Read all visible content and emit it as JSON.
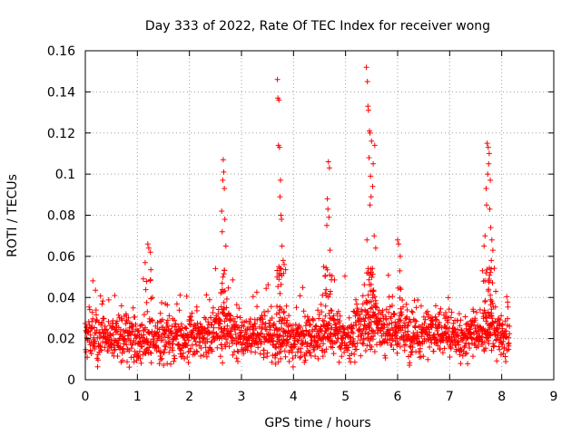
{
  "chart_data": {
    "type": "scatter",
    "title": "Day 333 of 2022, Rate Of TEC Index for receiver wong",
    "xlabel": "GPS time / hours",
    "ylabel": "ROTI / TECUs",
    "xlim": [
      0,
      9
    ],
    "ylim": [
      0,
      0.16
    ],
    "xticks": [
      0,
      1,
      2,
      3,
      4,
      5,
      6,
      7,
      8,
      9
    ],
    "xtick_labels": [
      "0",
      "1",
      "2",
      "3",
      "4",
      "5",
      "6",
      "7",
      "8",
      "9"
    ],
    "yticks": [
      0,
      0.02,
      0.04,
      0.06,
      0.08,
      0.1,
      0.12,
      0.14,
      0.16
    ],
    "ytick_labels": [
      "0",
      "0.02",
      "0.04",
      "0.06",
      "0.08",
      "0.1",
      "0.12",
      "0.14",
      "0.16"
    ],
    "grid": true,
    "marker": "+",
    "color": "#ff0000",
    "series": [
      {
        "name": "ROTI",
        "x_range": [
          0,
          8.15
        ],
        "baseline_range": [
          0.008,
          0.04
        ],
        "typical_median": 0.02,
        "peak_points": [
          {
            "x": 1.2,
            "y": 0.066
          },
          {
            "x": 1.22,
            "y": 0.064
          },
          {
            "x": 1.25,
            "y": 0.062
          },
          {
            "x": 1.15,
            "y": 0.057
          },
          {
            "x": 2.65,
            "y": 0.107
          },
          {
            "x": 2.66,
            "y": 0.101
          },
          {
            "x": 2.64,
            "y": 0.097
          },
          {
            "x": 2.67,
            "y": 0.093
          },
          {
            "x": 2.62,
            "y": 0.082
          },
          {
            "x": 2.68,
            "y": 0.078
          },
          {
            "x": 2.63,
            "y": 0.072
          },
          {
            "x": 2.7,
            "y": 0.065
          },
          {
            "x": 3.69,
            "y": 0.146
          },
          {
            "x": 3.7,
            "y": 0.137
          },
          {
            "x": 3.72,
            "y": 0.136
          },
          {
            "x": 3.71,
            "y": 0.114
          },
          {
            "x": 3.73,
            "y": 0.113
          },
          {
            "x": 3.75,
            "y": 0.097
          },
          {
            "x": 3.74,
            "y": 0.089
          },
          {
            "x": 3.76,
            "y": 0.08
          },
          {
            "x": 3.77,
            "y": 0.078
          },
          {
            "x": 3.78,
            "y": 0.065
          },
          {
            "x": 3.8,
            "y": 0.058
          },
          {
            "x": 3.82,
            "y": 0.056
          },
          {
            "x": 4.67,
            "y": 0.106
          },
          {
            "x": 4.69,
            "y": 0.103
          },
          {
            "x": 4.65,
            "y": 0.088
          },
          {
            "x": 4.66,
            "y": 0.083
          },
          {
            "x": 4.68,
            "y": 0.079
          },
          {
            "x": 4.64,
            "y": 0.075
          },
          {
            "x": 4.7,
            "y": 0.063
          },
          {
            "x": 4.58,
            "y": 0.055
          },
          {
            "x": 5.4,
            "y": 0.152
          },
          {
            "x": 5.42,
            "y": 0.145
          },
          {
            "x": 5.43,
            "y": 0.133
          },
          {
            "x": 5.44,
            "y": 0.131
          },
          {
            "x": 5.46,
            "y": 0.121
          },
          {
            "x": 5.47,
            "y": 0.12
          },
          {
            "x": 5.5,
            "y": 0.116
          },
          {
            "x": 5.56,
            "y": 0.114
          },
          {
            "x": 5.45,
            "y": 0.108
          },
          {
            "x": 5.53,
            "y": 0.105
          },
          {
            "x": 5.48,
            "y": 0.099
          },
          {
            "x": 5.52,
            "y": 0.094
          },
          {
            "x": 5.49,
            "y": 0.089
          },
          {
            "x": 5.47,
            "y": 0.085
          },
          {
            "x": 5.41,
            "y": 0.068
          },
          {
            "x": 5.55,
            "y": 0.07
          },
          {
            "x": 5.58,
            "y": 0.064
          },
          {
            "x": 6.0,
            "y": 0.068
          },
          {
            "x": 6.02,
            "y": 0.066
          },
          {
            "x": 6.05,
            "y": 0.06
          },
          {
            "x": 7.72,
            "y": 0.115
          },
          {
            "x": 7.74,
            "y": 0.113
          },
          {
            "x": 7.76,
            "y": 0.11
          },
          {
            "x": 7.75,
            "y": 0.105
          },
          {
            "x": 7.73,
            "y": 0.1
          },
          {
            "x": 7.78,
            "y": 0.097
          },
          {
            "x": 7.7,
            "y": 0.093
          },
          {
            "x": 7.71,
            "y": 0.085
          },
          {
            "x": 7.77,
            "y": 0.083
          },
          {
            "x": 7.79,
            "y": 0.074
          },
          {
            "x": 7.68,
            "y": 0.07
          },
          {
            "x": 7.81,
            "y": 0.068
          },
          {
            "x": 7.66,
            "y": 0.065
          },
          {
            "x": 7.83,
            "y": 0.063
          },
          {
            "x": 7.8,
            "y": 0.058
          }
        ]
      }
    ]
  }
}
